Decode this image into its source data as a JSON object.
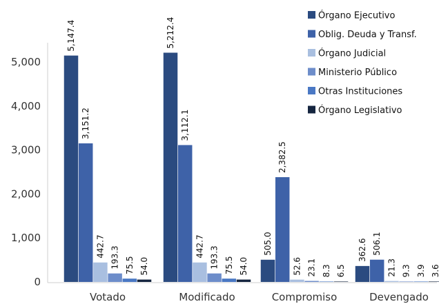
{
  "chart_data": {
    "type": "bar",
    "title": "",
    "xlabel": "",
    "ylabel": "",
    "ylim": [
      0,
      5500
    ],
    "yticks": [
      "0",
      "1,000",
      "2,000",
      "3,000",
      "4,000",
      "5,000"
    ],
    "grid": false,
    "legend_position": "top-right",
    "categories": [
      "Votado",
      "Modificado",
      "Compromiso",
      "Devengado"
    ],
    "series": [
      {
        "name": "Órgano Ejecutivo",
        "color": "#2b4b80",
        "values": [
          5147.4,
          5212.4,
          505.0,
          362.6
        ],
        "labels": [
          "5,147.4",
          "5,212.4",
          "505.0",
          "362.6"
        ]
      },
      {
        "name": "Oblig. Deuda y Transf.",
        "color": "#3e62a8",
        "values": [
          3151.2,
          3112.1,
          2382.5,
          506.1
        ],
        "labels": [
          "3,151.2",
          "3,112.1",
          "2,382.5",
          "506.1"
        ]
      },
      {
        "name": "Órgano Judicial",
        "color": "#a9bfe0",
        "values": [
          442.7,
          442.7,
          52.6,
          21.3
        ],
        "labels": [
          "442.7",
          "442.7",
          "52.6",
          "21.3"
        ]
      },
      {
        "name": "Ministerio Público",
        "color": "#6d8dca",
        "values": [
          193.3,
          193.3,
          23.1,
          9.3
        ],
        "labels": [
          "193.3",
          "193.3",
          "23.1",
          "9.3"
        ]
      },
      {
        "name": "Otras Instituciones",
        "color": "#4a78c4",
        "values": [
          75.5,
          75.5,
          8.3,
          3.9
        ],
        "labels": [
          "75.5",
          "75.5",
          "8.3",
          "3.9"
        ]
      },
      {
        "name": "Órgano Legislativo",
        "color": "#15253f",
        "values": [
          54.0,
          54.0,
          6.5,
          3.6
        ],
        "labels": [
          "54.0",
          "54.0",
          "6.5",
          "3.6"
        ]
      }
    ]
  }
}
